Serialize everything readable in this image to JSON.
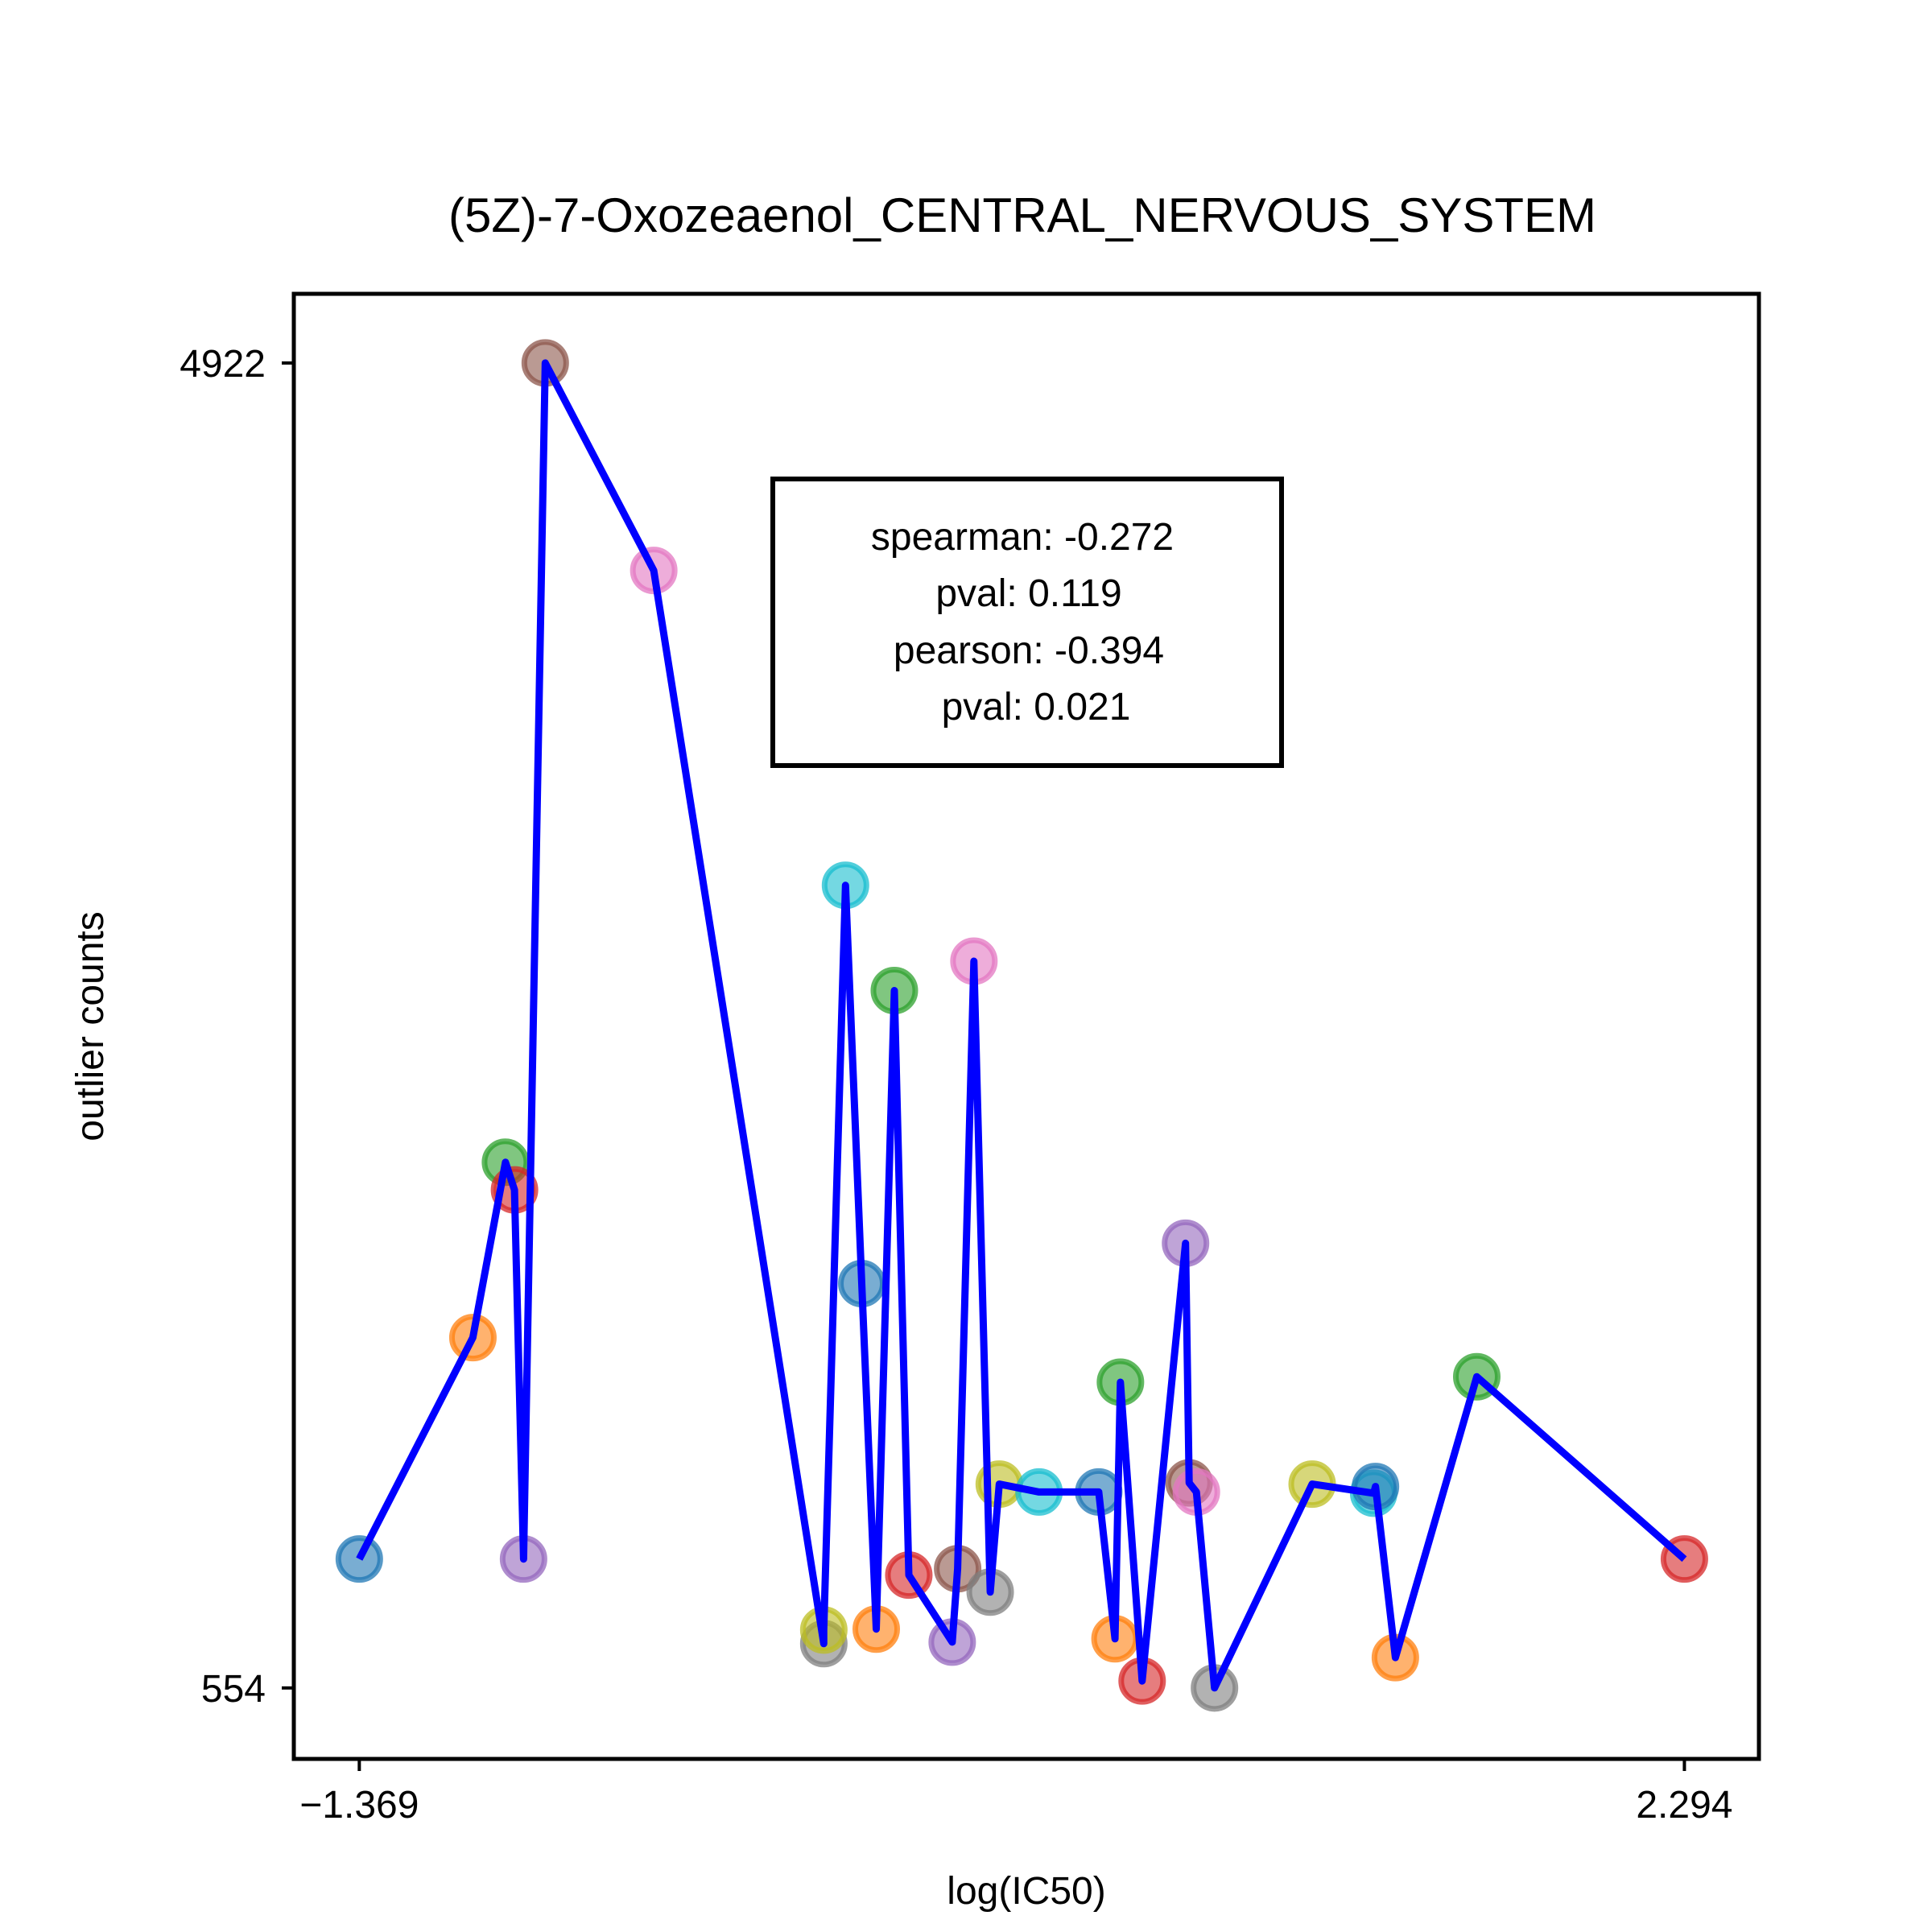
{
  "chart_data": {
    "type": "scatter",
    "title": "(5Z)-7-Oxozeaenol_CENTRAL_NERVOUS_SYSTEM",
    "xlabel": "log(IC50)",
    "ylabel": "outlier counts",
    "xlim": [
      -1.55,
      2.5
    ],
    "ylim": [
      320,
      5150
    ],
    "xticks": [
      -1.369,
      2.294
    ],
    "xtick_labels": [
      "−1.369",
      "2.294"
    ],
    "yticks": [
      554,
      4922
    ],
    "ytick_labels": [
      "554",
      "4922"
    ],
    "grid": false,
    "stats_box": {
      "position": "top-center",
      "lines": [
        "spearman: -0.272",
        "pval: 0.119",
        "pearson: -0.394",
        "pval: 0.021"
      ]
    },
    "line_color": "#0000ff",
    "points": [
      {
        "x": -1.369,
        "y": 979,
        "color": "#1f77b4"
      },
      {
        "x": -1.055,
        "y": 1709,
        "color": "#ff7f0e"
      },
      {
        "x": -0.965,
        "y": 2287,
        "color": "#2ca02c"
      },
      {
        "x": -0.94,
        "y": 2196,
        "color": "#d62728"
      },
      {
        "x": -0.915,
        "y": 979,
        "color": "#9467bd"
      },
      {
        "x": -0.855,
        "y": 4922,
        "color": "#8c564b"
      },
      {
        "x": -0.555,
        "y": 4238,
        "color": "#e377c2"
      },
      {
        "x": -0.085,
        "y": 700,
        "color": "#7f7f7f"
      },
      {
        "x": -0.085,
        "y": 745,
        "color": "#bcbd22"
      },
      {
        "x": -0.025,
        "y": 3200,
        "color": "#17becf"
      },
      {
        "x": 0.02,
        "y": 1887,
        "color": "#1f77b4"
      },
      {
        "x": 0.06,
        "y": 748,
        "color": "#ff7f0e"
      },
      {
        "x": 0.11,
        "y": 2853,
        "color": "#2ca02c"
      },
      {
        "x": 0.15,
        "y": 926,
        "color": "#d62728"
      },
      {
        "x": 0.27,
        "y": 705,
        "color": "#9467bd"
      },
      {
        "x": 0.285,
        "y": 947,
        "color": "#8c564b"
      },
      {
        "x": 0.33,
        "y": 2950,
        "color": "#e377c2"
      },
      {
        "x": 0.375,
        "y": 870,
        "color": "#7f7f7f"
      },
      {
        "x": 0.4,
        "y": 1226,
        "color": "#bcbd22"
      },
      {
        "x": 0.51,
        "y": 1200,
        "color": "#17becf"
      },
      {
        "x": 0.675,
        "y": 1200,
        "color": "#1f77b4"
      },
      {
        "x": 0.72,
        "y": 716,
        "color": "#ff7f0e"
      },
      {
        "x": 0.735,
        "y": 1562,
        "color": "#2ca02c"
      },
      {
        "x": 0.795,
        "y": 577,
        "color": "#d62728"
      },
      {
        "x": 0.915,
        "y": 2020,
        "color": "#9467bd"
      },
      {
        "x": 0.925,
        "y": 1230,
        "color": "#8c564b"
      },
      {
        "x": 0.945,
        "y": 1200,
        "color": "#e377c2"
      },
      {
        "x": 0.995,
        "y": 554,
        "color": "#7f7f7f"
      },
      {
        "x": 1.265,
        "y": 1226,
        "color": "#bcbd22"
      },
      {
        "x": 1.435,
        "y": 1196,
        "color": "#17becf"
      },
      {
        "x": 1.44,
        "y": 1218,
        "color": "#1f77b4"
      },
      {
        "x": 1.495,
        "y": 654,
        "color": "#ff7f0e"
      },
      {
        "x": 1.72,
        "y": 1580,
        "color": "#2ca02c"
      },
      {
        "x": 2.294,
        "y": 979,
        "color": "#d62728"
      }
    ]
  }
}
